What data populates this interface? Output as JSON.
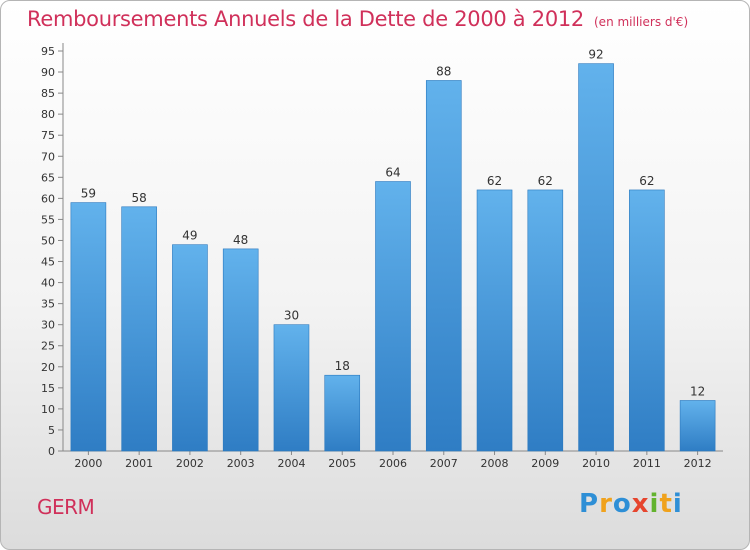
{
  "header": {
    "title": "Remboursements Annuels de la Dette de 2000 à 2012",
    "unit": "(en milliers d'€)"
  },
  "footer": {
    "commune": "GERM",
    "brand": [
      "P",
      "r",
      "o",
      "x",
      "i",
      "t",
      "i"
    ]
  },
  "chart_data": {
    "type": "bar",
    "title": "Remboursements Annuels de la Dette de 2000 à 2012",
    "subtitle": "(en milliers d'€)",
    "xlabel": "",
    "ylabel": "",
    "categories": [
      "2000",
      "2001",
      "2002",
      "2003",
      "2004",
      "2005",
      "2006",
      "2007",
      "2008",
      "2009",
      "2010",
      "2011",
      "2012"
    ],
    "values": [
      59,
      58,
      49,
      48,
      30,
      18,
      64,
      88,
      62,
      62,
      92,
      62,
      12
    ],
    "ylim": [
      0,
      95
    ],
    "ytick_step": 5,
    "grid": false,
    "bar_color": "#3a8fd8",
    "bar_color_light": "#5fb0ea"
  },
  "colors": {
    "accent": "#d0305a",
    "axis": "#888888",
    "label": "#333333"
  }
}
